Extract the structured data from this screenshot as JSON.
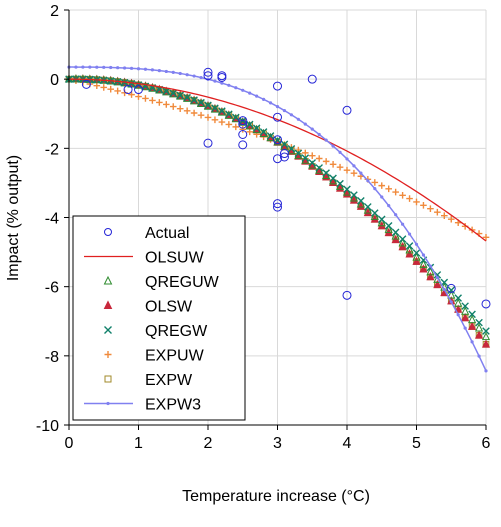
{
  "chart_data": {
    "type": "scatter",
    "xlabel": "Temperature increase (°C)",
    "ylabel": "Impact (% output)",
    "xlim": [
      0,
      6
    ],
    "ylim": [
      -10,
      2
    ],
    "xticks": [
      "0",
      "1",
      "2",
      "3",
      "4",
      "5",
      "6"
    ],
    "yticks": [
      "2",
      "0",
      "-2",
      "-4",
      "-6",
      "-8",
      "-10"
    ],
    "grid": true,
    "legend_position": "bottom-left",
    "series": [
      {
        "name": "Actual",
        "marker": "circle-open",
        "color": "#2424d6",
        "x": [
          0.25,
          0.85,
          1.0,
          2.0,
          2.0,
          2.0,
          2.2,
          2.2,
          2.5,
          2.5,
          2.5,
          2.5,
          3.0,
          3.0,
          3.0,
          3.0,
          3.0,
          3.0,
          3.1,
          3.1,
          3.5,
          4.0,
          4.0,
          5.5,
          6.0
        ],
        "y": [
          -0.15,
          -0.3,
          -0.3,
          0.2,
          0.1,
          -1.85,
          0.1,
          0.05,
          -1.3,
          -1.6,
          -1.9,
          -1.2,
          -0.2,
          -1.1,
          -1.75,
          -2.3,
          -3.6,
          -3.7,
          -2.15,
          -2.25,
          0.0,
          -0.9,
          -6.25,
          -6.05,
          -6.5
        ]
      },
      {
        "name": "OLSUW",
        "style": "line",
        "color": "#e02020",
        "coef": [
          0.0,
          -0.13
        ]
      },
      {
        "name": "QREGUW",
        "marker": "triangle-open",
        "color": "#2e8b2e",
        "coef": [
          0.03,
          -0.212
        ]
      },
      {
        "name": "OLSW",
        "marker": "triangle-filled",
        "color": "#c8283c",
        "coef": [
          0.06,
          -0.223
        ]
      },
      {
        "name": "QREGW",
        "marker": "x",
        "color": "#10806a",
        "coef": [
          0.04,
          -0.209
        ]
      },
      {
        "name": "EXPUW",
        "marker": "plus",
        "color": "#f08a3c",
        "coef": [
          -0.45,
          -0.052
        ]
      },
      {
        "name": "EXPW",
        "marker": "square-open",
        "color": "#a08a28",
        "coef": [
          0.06,
          -0.223
        ]
      },
      {
        "name": "EXPW3",
        "style": "line-dot",
        "color": "#8080f0",
        "cubic": [
          0.35,
          0.0,
          -0.01,
          -0.039
        ]
      }
    ]
  }
}
